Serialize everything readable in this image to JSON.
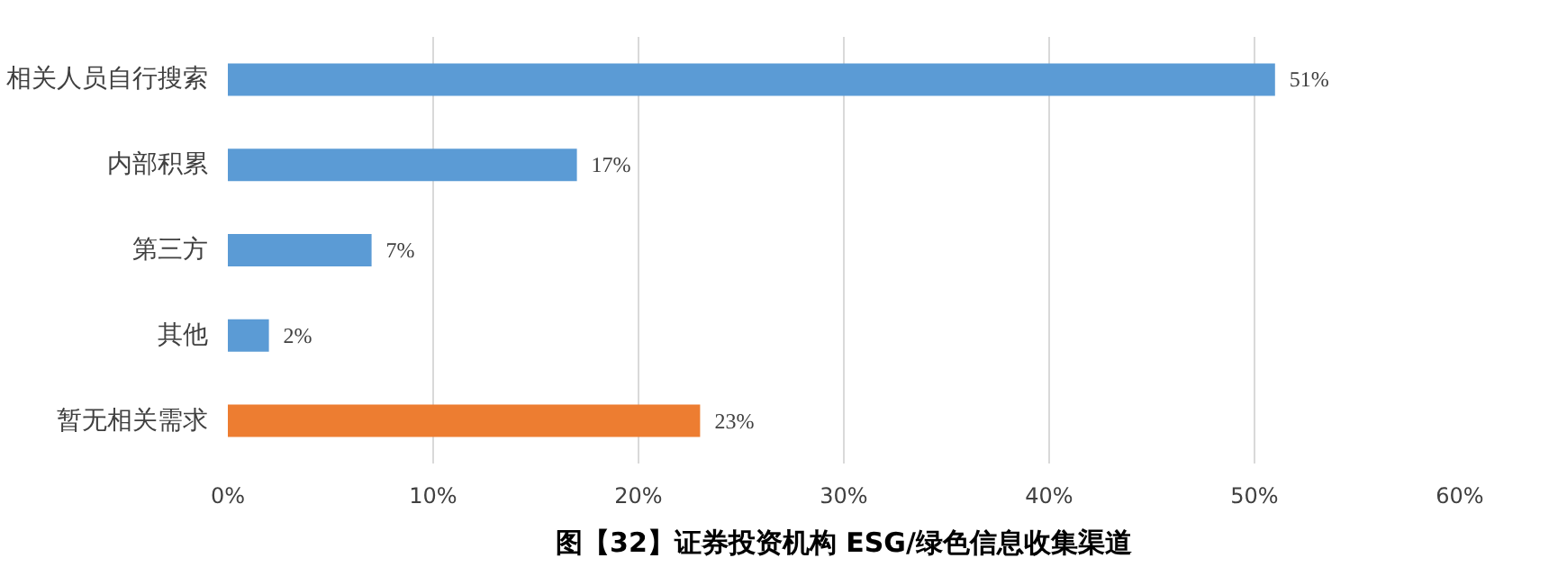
{
  "chart_data": {
    "type": "bar",
    "orientation": "horizontal",
    "title": "图【32】证券投资机构 ESG/绿色信息收集渠道",
    "categories": [
      "相关人员自行搜索",
      "内部积累",
      "第三方",
      "其他",
      "暂无相关需求"
    ],
    "values": [
      51,
      17,
      7,
      2,
      23
    ],
    "colors": [
      "#5b9bd5",
      "#5b9bd5",
      "#5b9bd5",
      "#5b9bd5",
      "#ed7d31"
    ],
    "value_labels": [
      "51%",
      "17%",
      "7%",
      "2%",
      "23%"
    ],
    "xlim": [
      0,
      60
    ],
    "xticks": [
      {
        "value": 0,
        "label": "0%"
      },
      {
        "value": 10,
        "label": "10%"
      },
      {
        "value": 20,
        "label": "20%"
      },
      {
        "value": 30,
        "label": "30%"
      },
      {
        "value": 40,
        "label": "40%"
      },
      {
        "value": 50,
        "label": "50%"
      },
      {
        "value": 60,
        "label": "60%"
      }
    ],
    "grid": "x"
  }
}
